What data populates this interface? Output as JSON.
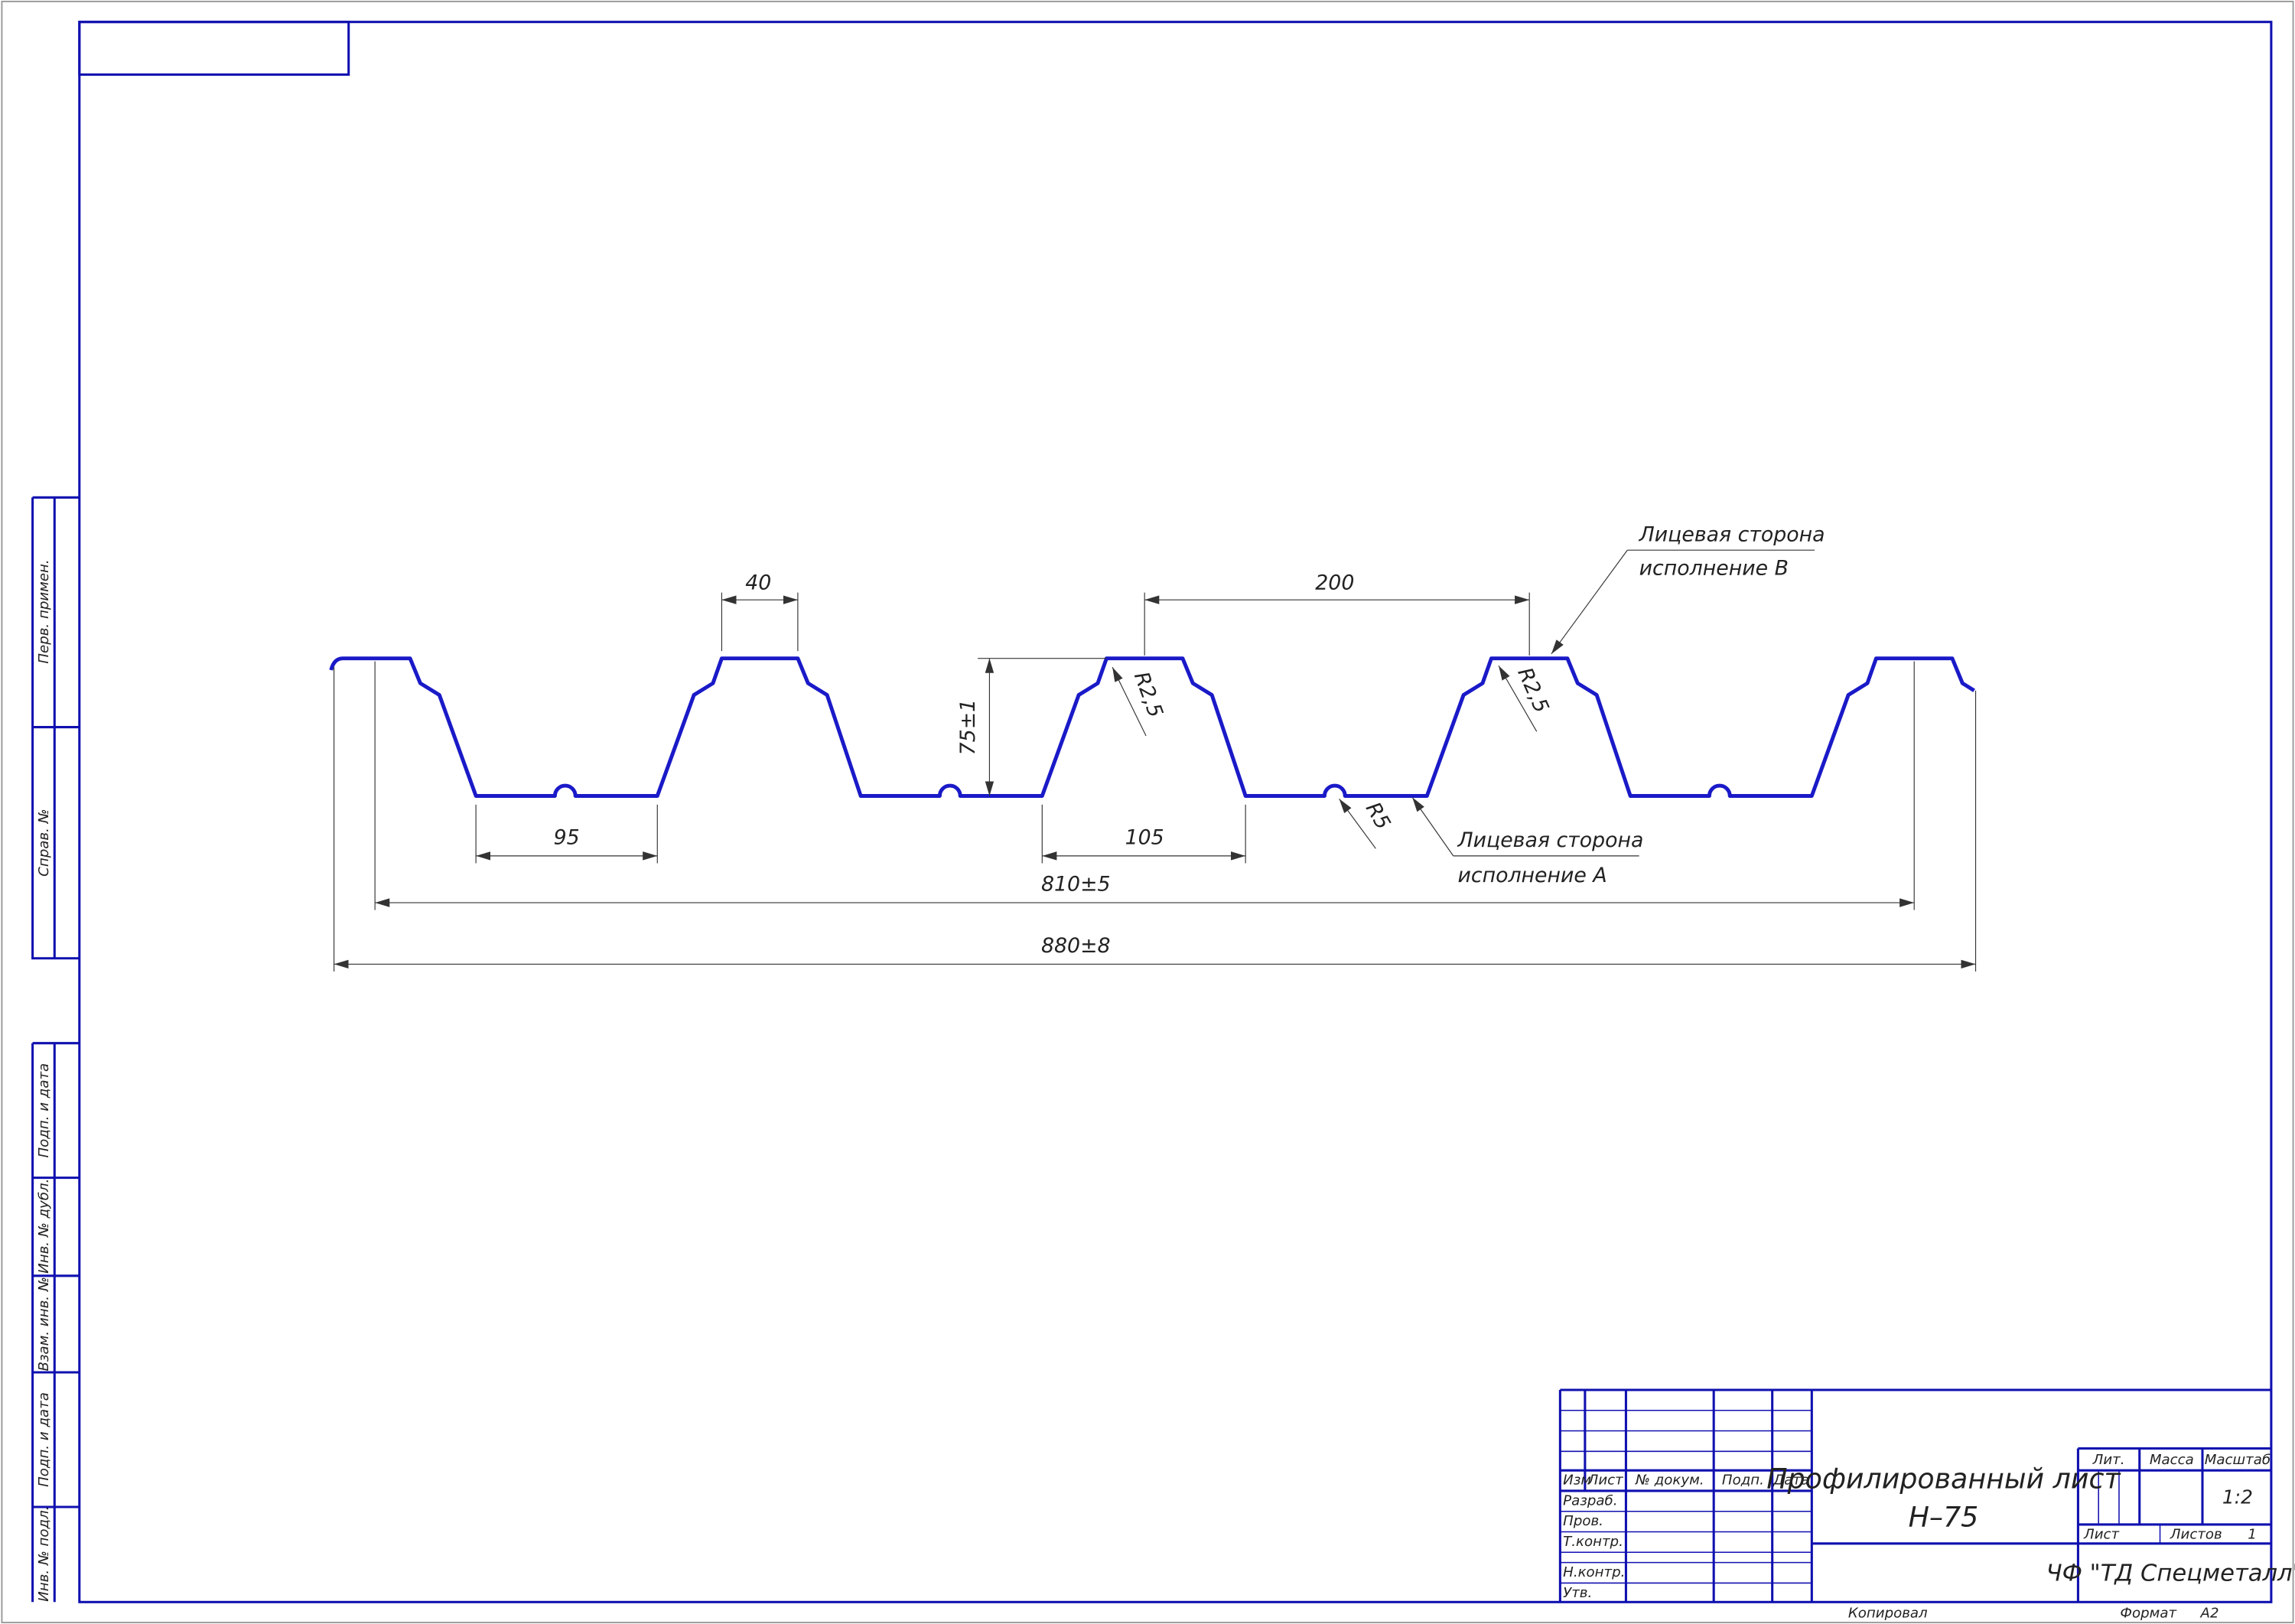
{
  "dimensions": {
    "top_width": "40",
    "pitch": "200",
    "height": "75±1",
    "radius_top_1": "R2,5",
    "radius_top_2": "R2,5",
    "bottom_width": "95",
    "base_width": "105",
    "radius_bottom": "R5",
    "working_width": "810±5",
    "total_width": "880±8"
  },
  "callouts": [
    {
      "line1": "Лицевая сторона",
      "line2": "исполнение В"
    },
    {
      "line1": "Лицевая сторона",
      "line2": "исполнение А"
    }
  ],
  "side_stamps": [
    "Перв. примен.",
    "Справ. №",
    "Подп. и дата",
    "Инв. № дубл.",
    "Взам. инв. №",
    "Подп. и дата",
    "Инв. № подл."
  ],
  "title_block": {
    "headers": [
      "Изм",
      "Лист",
      "№ докум.",
      "Подп.",
      "Дата"
    ],
    "roles": [
      "Разраб.",
      "Пров.",
      "Т.контр.",
      "Н.контр.",
      "Утв."
    ],
    "title": "Профилированный лист",
    "designation": "Н–75",
    "lit": "Лит.",
    "mass": "Масса",
    "scale_label": "Масштаб",
    "scale": "1:2",
    "sheet": "Лист",
    "sheets": "Листов",
    "sheets_count": "1",
    "company": "ЧФ \"ТД Спецметалл\"",
    "copied": "Копировал",
    "format_label": "Формат",
    "format": "А2"
  }
}
